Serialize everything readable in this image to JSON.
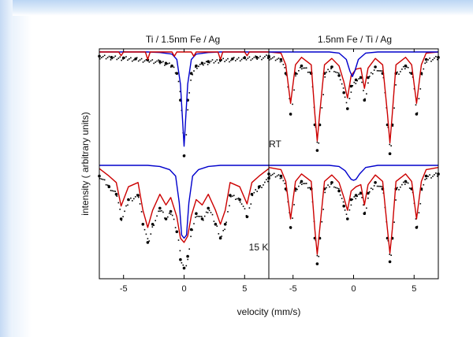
{
  "figure": {
    "panel_titles": [
      "Ti / 1.5nm Fe / Ag",
      "1.5nm Fe / Ti / Ag"
    ],
    "temperature_labels": [
      "RT",
      "15  K"
    ],
    "xlabel": "velocity (mm/s)",
    "ylabel": "intensity ( arbitrary units)"
  },
  "chart_data": [
    {
      "type": "line",
      "panel": "top-left",
      "title": "Ti / 1.5nm Fe / Ag",
      "annotation": "",
      "xlim": [
        -7,
        7
      ],
      "xticks": [
        -5,
        0,
        5
      ],
      "xlabel": "velocity (mm/s)",
      "ylabel": "intensity ( arbitrary units)",
      "series": [
        {
          "color": "#000000",
          "style": "points",
          "x": [
            -7,
            -6,
            -5,
            -4,
            -3,
            -2,
            -1.5,
            -1,
            -0.6,
            -0.3,
            0,
            0.3,
            0.6,
            1,
            1.5,
            2,
            3,
            4,
            5,
            6,
            7
          ],
          "y": [
            0.96,
            0.95,
            0.945,
            0.935,
            0.925,
            0.91,
            0.895,
            0.87,
            0.8,
            0.55,
            0.03,
            0.55,
            0.8,
            0.87,
            0.895,
            0.91,
            0.925,
            0.935,
            0.945,
            0.95,
            0.96
          ]
        },
        {
          "color": "#0000cc",
          "style": "line",
          "x": [
            -7,
            -5,
            -3,
            -2,
            -1,
            -0.6,
            -0.3,
            0,
            0.3,
            0.6,
            1,
            2,
            3,
            5,
            7
          ],
          "y": [
            1.0,
            1.0,
            1.0,
            0.995,
            0.98,
            0.93,
            0.7,
            0.12,
            0.7,
            0.93,
            0.98,
            0.995,
            1.0,
            1.0,
            1.0
          ]
        },
        {
          "color": "#cc0000",
          "style": "line",
          "x": [
            -7,
            -5.4,
            -5.2,
            -5,
            -3.2,
            -3,
            -2.8,
            -1,
            -0.8,
            -0.6,
            0.6,
            0.8,
            1,
            2.8,
            3,
            3.2,
            5,
            5.2,
            5.4,
            7
          ],
          "y": [
            1.0,
            1.0,
            0.965,
            1.0,
            1.0,
            0.93,
            1.0,
            1.0,
            0.96,
            1.0,
            1.0,
            0.96,
            1.0,
            1.0,
            0.93,
            1.0,
            1.0,
            0.965,
            1.0,
            1.0
          ]
        }
      ]
    },
    {
      "type": "line",
      "panel": "top-right",
      "title": "1.5nm Fe / Ti / Ag",
      "annotation": "RT",
      "xlim": [
        -7,
        7
      ],
      "xticks": [
        -5,
        0,
        5
      ],
      "xlabel": "velocity (mm/s)",
      "ylabel": "intensity ( arbitrary units)",
      "series": [
        {
          "color": "#000000",
          "style": "points",
          "x": [
            -7,
            -6,
            -5.6,
            -5.2,
            -4.8,
            -4.3,
            -3.5,
            -3.2,
            -3,
            -2.8,
            -2.4,
            -1.8,
            -1.2,
            -0.8,
            -0.5,
            -0.2,
            0.2,
            0.6,
            0.9,
            1.2,
            1.8,
            2.4,
            2.8,
            3,
            3.2,
            3.5,
            4.3,
            4.8,
            5.2,
            5.6,
            6,
            7
          ],
          "y": [
            0.95,
            0.93,
            0.8,
            0.42,
            0.8,
            0.87,
            0.8,
            0.32,
            0.08,
            0.32,
            0.8,
            0.86,
            0.78,
            0.62,
            0.47,
            0.68,
            0.74,
            0.76,
            0.55,
            0.76,
            0.86,
            0.8,
            0.32,
            0.05,
            0.32,
            0.8,
            0.87,
            0.8,
            0.42,
            0.8,
            0.93,
            0.95
          ]
        },
        {
          "color": "#cc0000",
          "style": "line",
          "x": [
            -7,
            -6,
            -5.6,
            -5.2,
            -4.8,
            -4.3,
            -3.5,
            -3.2,
            -3,
            -2.8,
            -2.4,
            -1.8,
            -1.2,
            -0.8,
            -0.5,
            -0.2,
            0.2,
            0.6,
            0.9,
            1.2,
            1.8,
            2.4,
            2.8,
            3,
            3.2,
            3.5,
            4.3,
            4.8,
            5.2,
            5.6,
            6,
            7
          ],
          "y": [
            1.0,
            0.99,
            0.88,
            0.52,
            0.88,
            0.95,
            0.88,
            0.42,
            0.17,
            0.42,
            0.88,
            0.94,
            0.87,
            0.72,
            0.57,
            0.78,
            0.84,
            0.85,
            0.66,
            0.85,
            0.94,
            0.88,
            0.42,
            0.15,
            0.42,
            0.88,
            0.95,
            0.88,
            0.52,
            0.88,
            0.99,
            1.0
          ]
        },
        {
          "color": "#0000cc",
          "style": "line",
          "x": [
            -7,
            -2,
            -1.2,
            -0.6,
            -0.3,
            -0.1,
            0.1,
            0.4,
            1,
            2,
            7
          ],
          "y": [
            1.0,
            1.0,
            0.99,
            0.93,
            0.82,
            0.77,
            0.82,
            0.93,
            0.99,
            1.0,
            1.0
          ]
        }
      ]
    },
    {
      "type": "line",
      "panel": "bottom-left",
      "title": "",
      "annotation": "15  K",
      "xlim": [
        -7,
        7
      ],
      "xticks": [
        -5,
        0,
        5
      ],
      "xlabel": "velocity (mm/s)",
      "ylabel": "intensity ( arbitrary units)",
      "series": [
        {
          "color": "#000000",
          "style": "points",
          "x": [
            -7,
            -6.2,
            -5.6,
            -5.2,
            -4.6,
            -3.8,
            -3.4,
            -3,
            -2.6,
            -2,
            -1.5,
            -1.1,
            -0.6,
            -0.3,
            0,
            0.3,
            0.6,
            1,
            1.5,
            2,
            2.6,
            3,
            3.4,
            3.8,
            4.6,
            5.2,
            5.6,
            6.2,
            7
          ],
          "y": [
            0.9,
            0.8,
            0.73,
            0.5,
            0.68,
            0.72,
            0.45,
            0.28,
            0.45,
            0.6,
            0.5,
            0.57,
            0.38,
            0.12,
            0.04,
            0.15,
            0.4,
            0.55,
            0.5,
            0.6,
            0.45,
            0.32,
            0.45,
            0.72,
            0.68,
            0.52,
            0.73,
            0.8,
            0.88
          ]
        },
        {
          "color": "#cc0000",
          "style": "line",
          "x": [
            -7,
            -6.2,
            -5.6,
            -5.2,
            -4.6,
            -3.8,
            -3.4,
            -3,
            -2.6,
            -2,
            -1.5,
            -1.1,
            -0.6,
            -0.3,
            0,
            0.3,
            0.6,
            1,
            1.5,
            2,
            2.6,
            3,
            3.4,
            3.8,
            4.6,
            5.2,
            5.6,
            6.2,
            7
          ],
          "y": [
            0.97,
            0.9,
            0.84,
            0.62,
            0.8,
            0.84,
            0.58,
            0.42,
            0.58,
            0.73,
            0.63,
            0.7,
            0.52,
            0.32,
            0.28,
            0.34,
            0.53,
            0.68,
            0.63,
            0.73,
            0.58,
            0.45,
            0.58,
            0.84,
            0.8,
            0.64,
            0.84,
            0.9,
            0.97
          ]
        },
        {
          "color": "#0000cc",
          "style": "line",
          "x": [
            -7,
            -3,
            -2,
            -1.2,
            -0.7,
            -0.4,
            -0.2,
            0,
            0.2,
            0.4,
            0.7,
            1.2,
            2,
            3,
            7
          ],
          "y": [
            1.0,
            1.0,
            0.99,
            0.96,
            0.9,
            0.65,
            0.35,
            0.32,
            0.35,
            0.65,
            0.9,
            0.96,
            0.99,
            1.0,
            1.0
          ]
        }
      ]
    },
    {
      "type": "line",
      "panel": "bottom-right",
      "title": "",
      "annotation": "",
      "xlim": [
        -7,
        7
      ],
      "xticks": [
        -5,
        0,
        5
      ],
      "xlabel": "velocity (mm/s)",
      "ylabel": "intensity ( arbitrary units)",
      "series": [
        {
          "color": "#000000",
          "style": "points",
          "x": [
            -7,
            -6,
            -5.6,
            -5.2,
            -4.8,
            -4.3,
            -3.5,
            -3.2,
            -3,
            -2.8,
            -2.4,
            -1.8,
            -1.2,
            -0.8,
            -0.5,
            -0.2,
            0.2,
            0.6,
            0.9,
            1.2,
            1.8,
            2.4,
            2.8,
            3,
            3.2,
            3.5,
            4.3,
            4.8,
            5.2,
            5.6,
            6,
            7
          ],
          "y": [
            0.92,
            0.9,
            0.78,
            0.42,
            0.78,
            0.85,
            0.78,
            0.32,
            0.08,
            0.32,
            0.78,
            0.84,
            0.76,
            0.62,
            0.5,
            0.68,
            0.72,
            0.74,
            0.55,
            0.74,
            0.84,
            0.78,
            0.32,
            0.1,
            0.32,
            0.78,
            0.85,
            0.78,
            0.42,
            0.78,
            0.9,
            0.92
          ]
        },
        {
          "color": "#cc0000",
          "style": "line",
          "x": [
            -7,
            -6,
            -5.6,
            -5.2,
            -4.8,
            -4.3,
            -3.5,
            -3.2,
            -3,
            -2.8,
            -2.4,
            -1.8,
            -1.2,
            -0.8,
            -0.5,
            -0.2,
            0.2,
            0.6,
            0.9,
            1.2,
            1.8,
            2.4,
            2.8,
            3,
            3.2,
            3.5,
            4.3,
            4.8,
            5.2,
            5.6,
            6,
            7
          ],
          "y": [
            0.98,
            0.96,
            0.85,
            0.5,
            0.85,
            0.92,
            0.85,
            0.4,
            0.17,
            0.4,
            0.85,
            0.91,
            0.84,
            0.7,
            0.58,
            0.76,
            0.8,
            0.82,
            0.63,
            0.82,
            0.91,
            0.85,
            0.4,
            0.18,
            0.4,
            0.85,
            0.92,
            0.85,
            0.5,
            0.85,
            0.96,
            0.98
          ]
        },
        {
          "color": "#0000cc",
          "style": "line",
          "x": [
            -7,
            -2,
            -1.2,
            -0.7,
            -0.4,
            -0.2,
            0,
            0.2,
            0.5,
            1,
            2,
            7
          ],
          "y": [
            1.0,
            1.0,
            0.99,
            0.95,
            0.9,
            0.87,
            0.86,
            0.87,
            0.92,
            0.98,
            1.0,
            1.0
          ]
        }
      ]
    }
  ]
}
